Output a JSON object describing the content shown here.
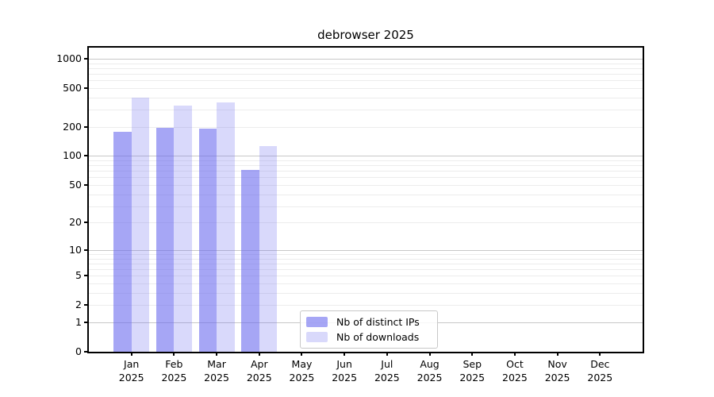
{
  "chart_data": {
    "type": "bar",
    "title": "debrowser 2025",
    "xlabel": "",
    "ylabel": "",
    "yscale": "log1p",
    "ylim": [
      0,
      1300
    ],
    "grid": "on",
    "year": "2025",
    "months": [
      "Jan",
      "Feb",
      "Mar",
      "Apr",
      "May",
      "Jun",
      "Jul",
      "Aug",
      "Sep",
      "Oct",
      "Nov",
      "Dec"
    ],
    "yticks": [
      0,
      1,
      2,
      5,
      10,
      20,
      50,
      100,
      200,
      500,
      1000
    ],
    "major_gridlines": [
      1,
      10,
      100,
      1000
    ],
    "minor_gridlines": [
      2,
      3,
      4,
      5,
      6,
      7,
      8,
      9,
      20,
      30,
      40,
      50,
      60,
      70,
      80,
      90,
      200,
      300,
      400,
      500,
      600,
      700,
      800,
      900
    ],
    "legend": {
      "position": "lower center",
      "items": [
        "Nb of distinct IPs",
        "Nb of downloads"
      ]
    },
    "series": [
      {
        "name": "Nb of distinct IPs",
        "color": "rgba(102,102,238,0.58)",
        "values": [
          178,
          196,
          190,
          72,
          0,
          0,
          0,
          0,
          0,
          0,
          0,
          0
        ]
      },
      {
        "name": "Nb of downloads",
        "color": "rgba(102,102,238,0.25)",
        "values": [
          396,
          332,
          356,
          127,
          0,
          0,
          0,
          0,
          0,
          0,
          0,
          0
        ]
      }
    ],
    "colors": {
      "spine": "#000000",
      "major_grid": "#c8c8c8",
      "minor_grid": "#ececec",
      "legend_border": "#c8c8c8",
      "background": "#ffffff"
    }
  }
}
